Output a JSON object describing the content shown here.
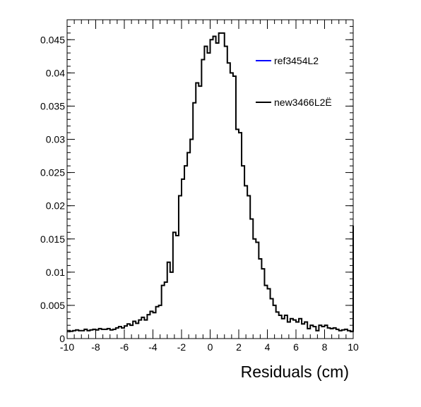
{
  "chart_data": {
    "type": "line",
    "style": "step-histogram",
    "title": "",
    "xlabel": "Residuals (cm)",
    "ylabel": "",
    "xlim": [
      -10,
      10
    ],
    "ylim": [
      0,
      0.048
    ],
    "x_ticks": [
      -10,
      -8,
      -6,
      -4,
      -2,
      0,
      2,
      4,
      6,
      8,
      10
    ],
    "y_ticks": [
      0,
      0.005,
      0.01,
      0.015,
      0.02,
      0.025,
      0.03,
      0.035,
      0.04,
      0.045
    ],
    "x_tick_labels": [
      "-10",
      "-8",
      "-6",
      "-4",
      "-2",
      "0",
      "2",
      "4",
      "6",
      "8",
      "10"
    ],
    "y_tick_labels": [
      "0",
      "0.005",
      "0.01",
      "0.015",
      "0.02",
      "0.025",
      "0.03",
      "0.035",
      "0.04",
      "0.045"
    ],
    "grid": false,
    "legend_position": "top-right",
    "bin_width": 0.2,
    "series": [
      {
        "name": "ref3454L2",
        "color": "#0000ff",
        "values": []
      },
      {
        "name": "new3466L2Ë",
        "color": "#000000",
        "x_start": -10,
        "values": [
          0.0012,
          0.0011,
          0.0012,
          0.0013,
          0.0012,
          0.0012,
          0.0014,
          0.0012,
          0.0013,
          0.0014,
          0.0013,
          0.0015,
          0.0014,
          0.0014,
          0.0015,
          0.0013,
          0.0014,
          0.0016,
          0.0018,
          0.0016,
          0.0019,
          0.0022,
          0.002,
          0.0026,
          0.0023,
          0.0028,
          0.0032,
          0.0028,
          0.0036,
          0.0041,
          0.0039,
          0.0048,
          0.005,
          0.008,
          0.0085,
          0.0115,
          0.01,
          0.016,
          0.0155,
          0.0215,
          0.024,
          0.026,
          0.028,
          0.03,
          0.0355,
          0.0385,
          0.038,
          0.042,
          0.044,
          0.043,
          0.045,
          0.0455,
          0.0445,
          0.046,
          0.046,
          0.044,
          0.0415,
          0.04,
          0.0395,
          0.0315,
          0.031,
          0.026,
          0.023,
          0.0215,
          0.018,
          0.015,
          0.0145,
          0.012,
          0.0105,
          0.008,
          0.0075,
          0.006,
          0.005,
          0.004,
          0.0035,
          0.003,
          0.0035,
          0.0025,
          0.003,
          0.0028,
          0.0025,
          0.003,
          0.0022,
          0.0025,
          0.0015,
          0.002,
          0.0018,
          0.0012,
          0.002,
          0.0018,
          0.002,
          0.0016,
          0.0015,
          0.0016,
          0.0014,
          0.0012,
          0.0013,
          0.0014,
          0.0012,
          0.0011
        ],
        "overflow_edge_height": 0.017
      }
    ]
  }
}
